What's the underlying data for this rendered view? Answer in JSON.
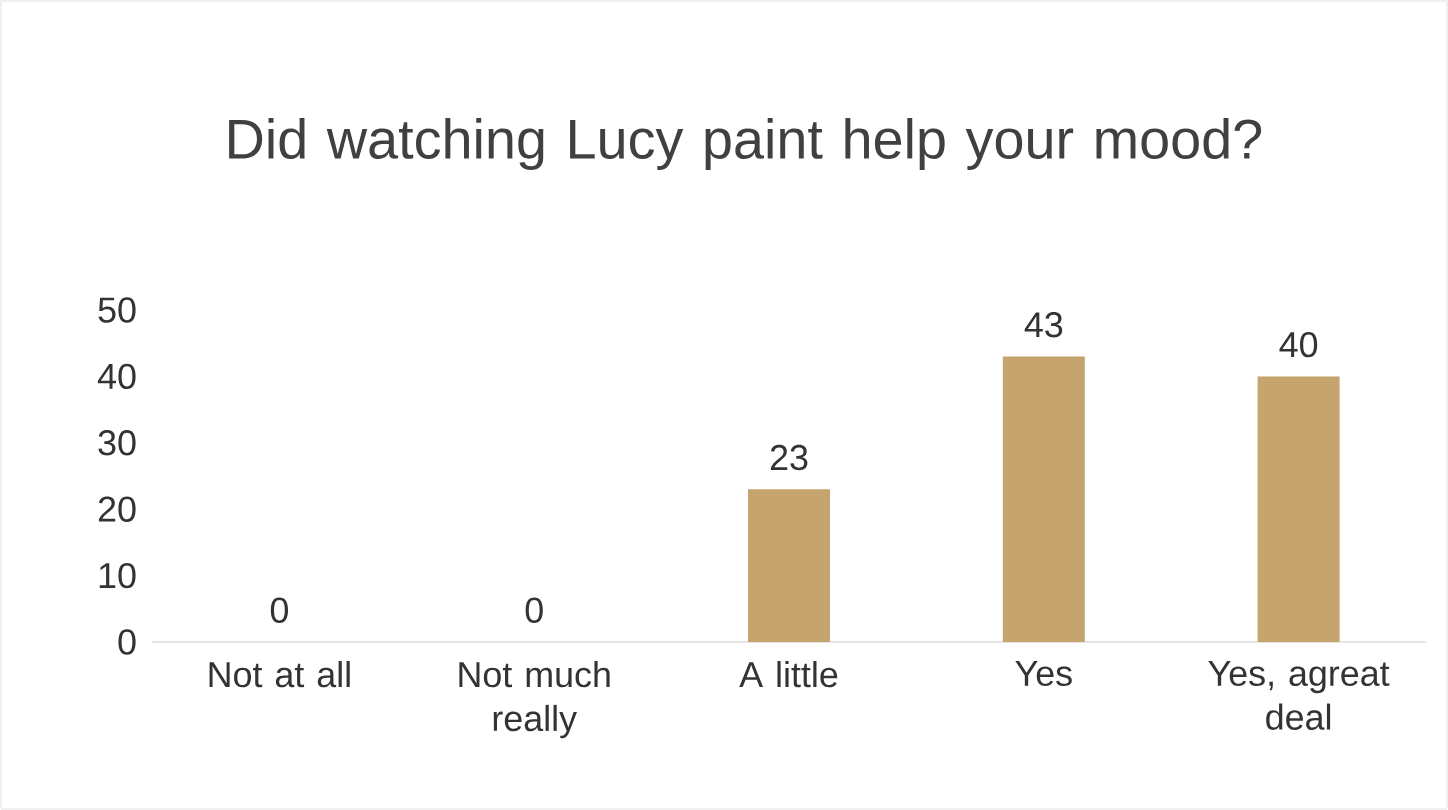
{
  "chart_data": {
    "type": "bar",
    "title": "Did watching Lucy paint help your mood?",
    "categories": [
      "Not at all",
      "Not much really",
      "A little",
      "Yes",
      "Yes, agreat deal"
    ],
    "values": [
      0,
      0,
      23,
      43,
      40
    ],
    "color": "#c5a46d",
    "ylim": [
      0,
      50
    ],
    "yticks": [
      0,
      10,
      20,
      30,
      40,
      50
    ],
    "grid": false,
    "data_labels": true
  }
}
